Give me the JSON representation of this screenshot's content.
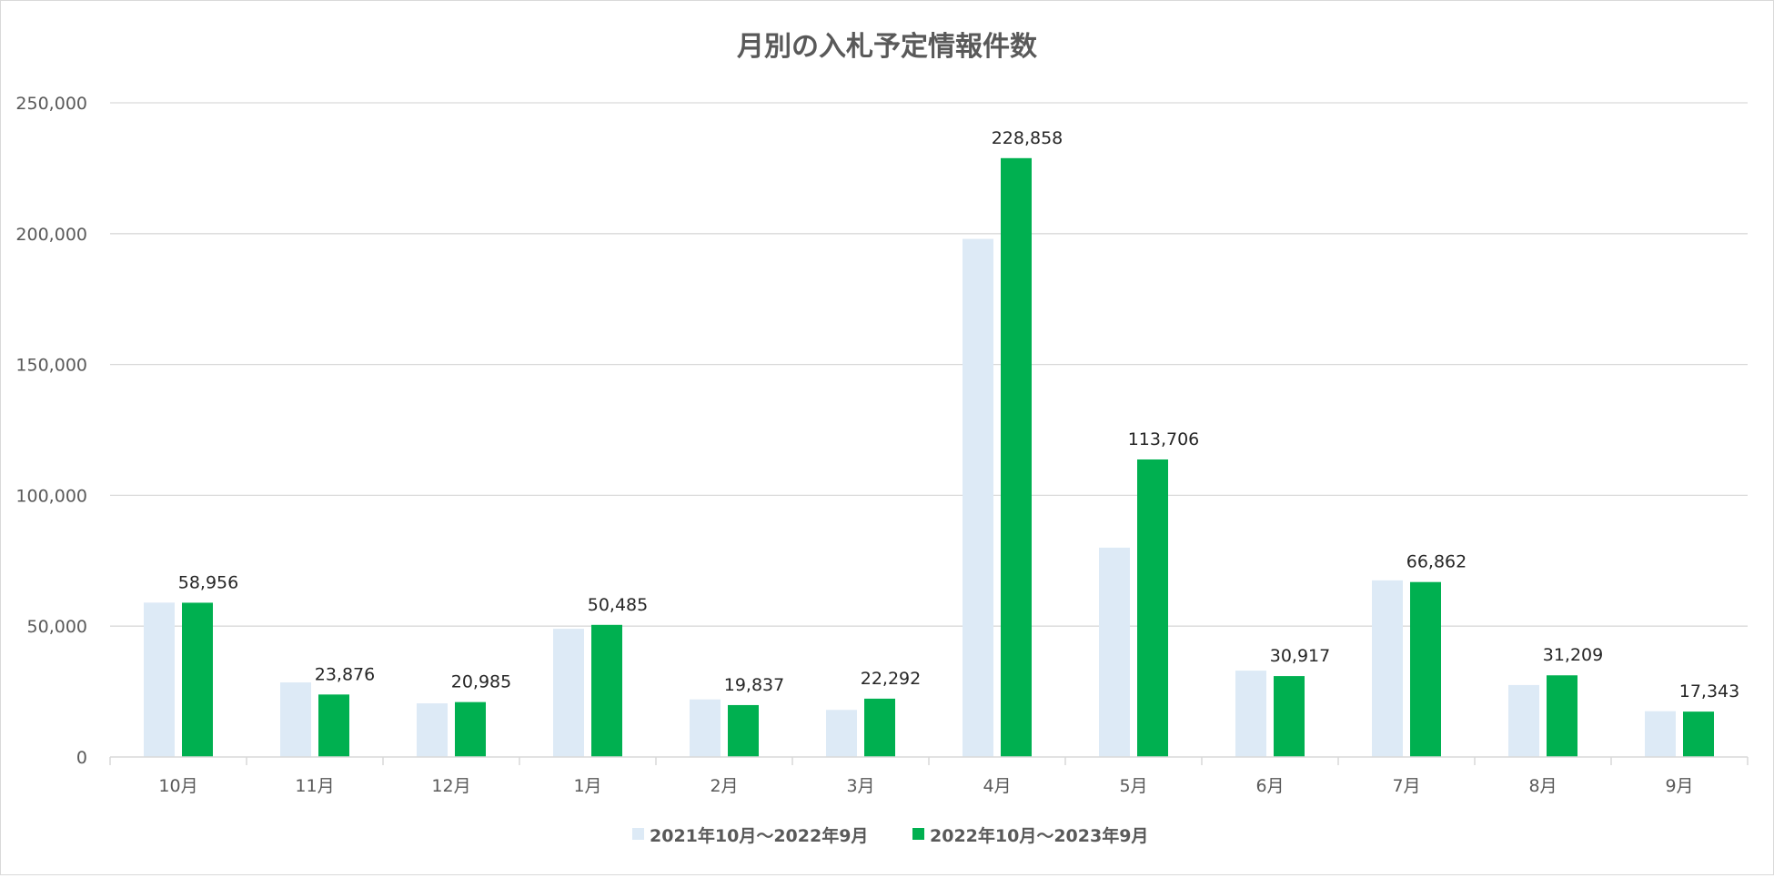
{
  "chart_data": {
    "type": "bar",
    "title": "月別の入札予定情報件数",
    "categories": [
      "10月",
      "11月",
      "12月",
      "1月",
      "2月",
      "3月",
      "4月",
      "5月",
      "6月",
      "7月",
      "8月",
      "9月"
    ],
    "series": [
      {
        "name": "2021年10月〜2022年9月",
        "values": [
          59000,
          28500,
          20500,
          49000,
          22000,
          18000,
          198000,
          80000,
          33000,
          67500,
          27500,
          17500
        ],
        "color": "#ddeaf6"
      },
      {
        "name": "2022年10月〜2023年9月",
        "values": [
          58956,
          23876,
          20985,
          50485,
          19837,
          22292,
          228858,
          113706,
          30917,
          66862,
          31209,
          17343
        ],
        "color": "#00b050"
      }
    ],
    "data_labels": [
      "58,956",
      "23,876",
      "20,985",
      "50,485",
      "19,837",
      "22,292",
      "228,858",
      "113,706",
      "30,917",
      "66,862",
      "31,209",
      "17,343"
    ],
    "ylim": [
      0,
      250000
    ],
    "yticks": [
      0,
      50000,
      100000,
      150000,
      200000,
      250000
    ],
    "ytick_labels": [
      "0",
      "50,000",
      "100,000",
      "150,000",
      "200,000",
      "250,000"
    ],
    "grid": true,
    "legend_position": "bottom-center",
    "gridline_color": "#d9d9d9",
    "text_color": "#595959"
  }
}
